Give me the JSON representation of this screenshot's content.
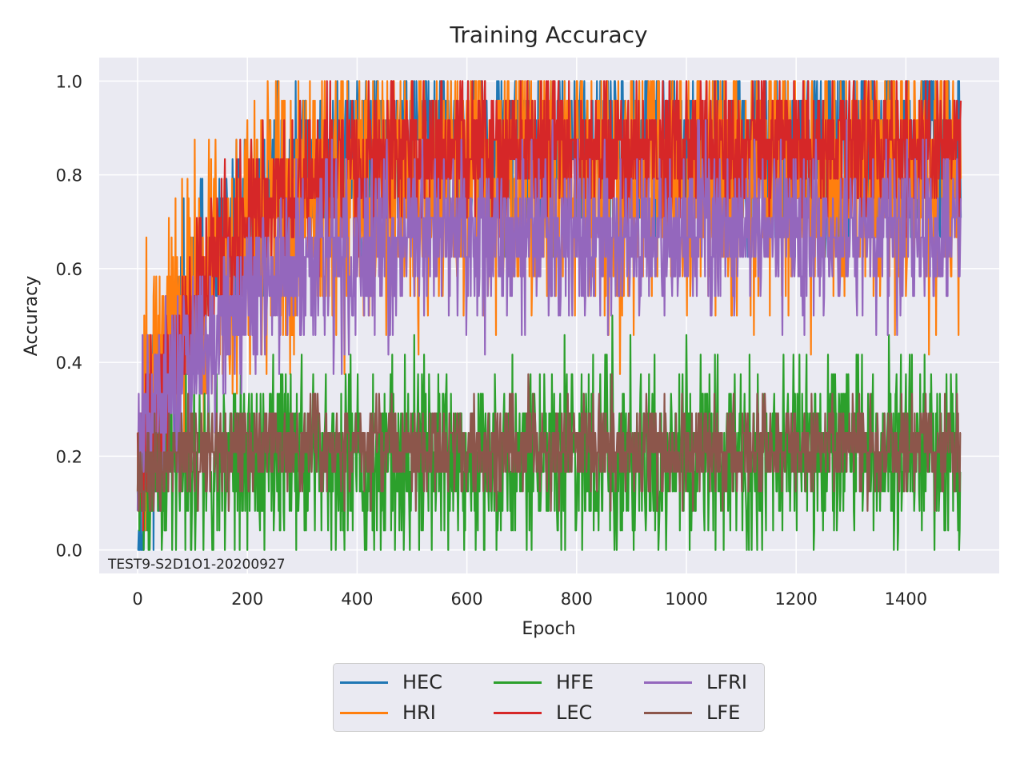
{
  "chart_data": {
    "type": "line",
    "title": "Training Accuracy",
    "xlabel": "Epoch",
    "ylabel": "Accuracy",
    "annotation": "TEST9-S2D1O1-20200927",
    "xlim": [
      -70,
      1570
    ],
    "ylim": [
      -0.05,
      1.05
    ],
    "xticks": [
      0,
      200,
      400,
      600,
      800,
      1000,
      1200,
      1400
    ],
    "yticks": [
      0.0,
      0.2,
      0.4,
      0.6,
      0.8,
      1.0
    ],
    "ytick_labels": [
      "0.0",
      "0.2",
      "0.4",
      "0.6",
      "0.8",
      "1.0"
    ],
    "grid": true,
    "legend_placement": "bottom-center (below chart, 3 columns)",
    "epochs": 1500,
    "series": [
      {
        "name": "HEC",
        "color": "#1f77b4",
        "start": 0.04,
        "plateau": 0.86,
        "spread": 0.1,
        "rise": 120
      },
      {
        "name": "HRI",
        "color": "#ff7f0e",
        "start": 0.25,
        "plateau": 0.8,
        "spread": 0.15,
        "rise": 140
      },
      {
        "name": "HFE",
        "color": "#2ca02c",
        "start": 0.1,
        "plateau": 0.2,
        "spread": 0.1,
        "rise": 60
      },
      {
        "name": "LEC",
        "color": "#d62728",
        "start": 0.12,
        "plateau": 0.86,
        "spread": 0.08,
        "rise": 130
      },
      {
        "name": "LFRI",
        "color": "#9467bd",
        "start": 0.2,
        "plateau": 0.68,
        "spread": 0.09,
        "rise": 160
      },
      {
        "name": "LFE",
        "color": "#8c564b",
        "start": 0.14,
        "plateau": 0.22,
        "spread": 0.05,
        "rise": 60
      }
    ]
  }
}
